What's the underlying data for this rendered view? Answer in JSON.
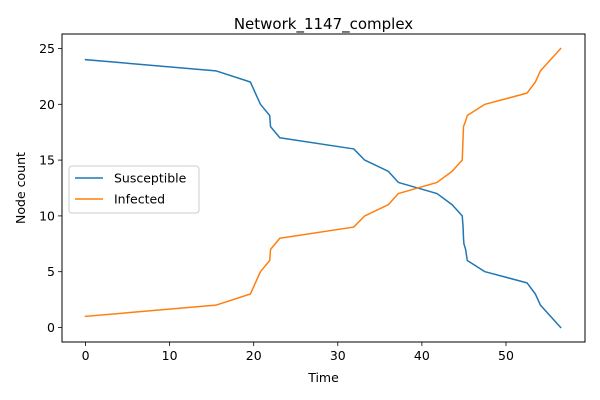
{
  "chart_data": {
    "type": "line",
    "title": "Network_1147_complex",
    "xlabel": "Time",
    "ylabel": "Node count",
    "xlim": [
      -2.8,
      59.4
    ],
    "ylim": [
      -1.3,
      26.3
    ],
    "xticks": [
      0,
      10,
      20,
      30,
      40,
      50
    ],
    "yticks": [
      0,
      5,
      10,
      15,
      20,
      25
    ],
    "grid": false,
    "legend_position": "center-left",
    "series": [
      {
        "name": "Susceptible",
        "color": "#1f77b4",
        "points": [
          [
            0,
            24
          ],
          [
            15.5,
            23
          ],
          [
            19.6,
            22
          ],
          [
            20.2,
            21
          ],
          [
            20.8,
            20
          ],
          [
            21.9,
            19
          ],
          [
            22.0,
            18
          ],
          [
            23.1,
            17
          ],
          [
            31.9,
            16
          ],
          [
            33.2,
            15
          ],
          [
            36.0,
            14
          ],
          [
            37.2,
            13
          ],
          [
            41.8,
            12
          ],
          [
            43.6,
            11
          ],
          [
            44.8,
            10
          ],
          [
            44.9,
            9
          ],
          [
            44.95,
            8
          ],
          [
            45.0,
            7.5
          ],
          [
            45.2,
            7
          ],
          [
            45.4,
            6
          ],
          [
            47.5,
            5
          ],
          [
            52.5,
            4
          ],
          [
            53.5,
            3
          ],
          [
            54.1,
            2
          ],
          [
            56.5,
            0
          ]
        ]
      },
      {
        "name": "Infected",
        "color": "#ff7f0e",
        "points": [
          [
            0,
            1
          ],
          [
            15.5,
            2
          ],
          [
            19.6,
            3
          ],
          [
            20.2,
            4
          ],
          [
            20.8,
            5
          ],
          [
            21.9,
            6
          ],
          [
            22.0,
            7
          ],
          [
            23.1,
            8
          ],
          [
            31.9,
            9
          ],
          [
            33.2,
            10
          ],
          [
            36.0,
            11
          ],
          [
            37.2,
            12
          ],
          [
            41.8,
            13
          ],
          [
            43.6,
            14
          ],
          [
            44.8,
            15
          ],
          [
            44.9,
            17
          ],
          [
            44.95,
            18
          ],
          [
            45.2,
            18.5
          ],
          [
            45.4,
            19
          ],
          [
            47.5,
            20
          ],
          [
            52.5,
            21
          ],
          [
            53.5,
            22
          ],
          [
            54.1,
            23
          ],
          [
            56.5,
            25
          ]
        ]
      }
    ]
  }
}
